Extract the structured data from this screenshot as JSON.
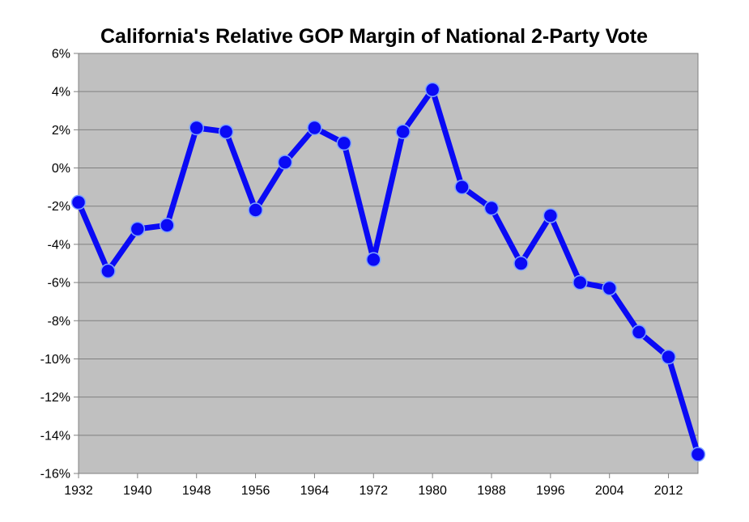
{
  "chart_data": {
    "type": "line",
    "title": "California's Relative GOP Margin of National 2-Party Vote",
    "xlabel": "",
    "ylabel": "",
    "xlim": [
      1932,
      2016
    ],
    "ylim": [
      -16,
      6
    ],
    "x_ticks": [
      1932,
      1940,
      1948,
      1956,
      1964,
      1972,
      1980,
      1988,
      1996,
      2004,
      2012
    ],
    "x_tick_labels": [
      "1932",
      "1940",
      "1948",
      "1956",
      "1964",
      "1972",
      "1980",
      "1988",
      "1996",
      "2004",
      "2012"
    ],
    "y_ticks": [
      6,
      4,
      2,
      0,
      -2,
      -4,
      -6,
      -8,
      -10,
      -12,
      -14,
      -16
    ],
    "y_tick_labels": [
      "6%",
      "4%",
      "2%",
      "0%",
      "-2%",
      "-4%",
      "-6%",
      "-8%",
      "-10%",
      "-12%",
      "-14%",
      "-16%"
    ],
    "grid": true,
    "legend": "none",
    "colors": {
      "plot_background": "#c0c0c0",
      "gridline": "#808080",
      "series": "#0a0af5",
      "marker_edge": "#7fa4ff"
    },
    "series": [
      {
        "x": [
          1932,
          1936,
          1940,
          1944,
          1948,
          1952,
          1956,
          1960,
          1964,
          1968,
          1972,
          1976,
          1980,
          1984,
          1988,
          1992,
          1996,
          2000,
          2004,
          2008,
          2012,
          2016
        ],
        "values": [
          -1.8,
          -5.4,
          -3.2,
          -3.0,
          2.1,
          1.9,
          -2.2,
          0.3,
          2.1,
          1.3,
          -4.8,
          1.9,
          4.1,
          -1.0,
          -2.1,
          -5.0,
          -2.5,
          -6.0,
          -6.3,
          -8.6,
          -9.9,
          -15.0
        ]
      }
    ]
  }
}
